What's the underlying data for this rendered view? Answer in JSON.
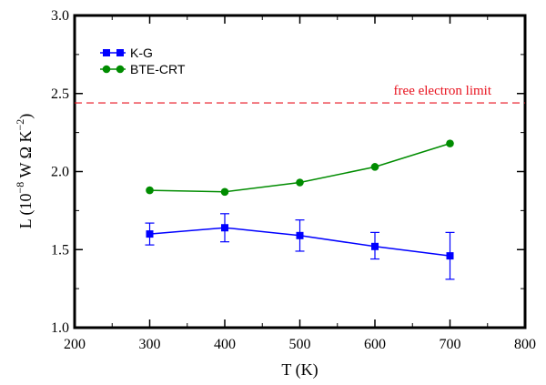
{
  "chart_data": {
    "type": "line",
    "title": "",
    "xlabel": "T (K)",
    "ylabel": "L (10^-8 W Ω K^-2)",
    "ylabel_parts": {
      "prefix": "L (10",
      "exp1": "−8",
      "middle": " W Ω K",
      "exp2": "−2",
      "suffix": ")"
    },
    "xlim": [
      200,
      800
    ],
    "ylim": [
      1.0,
      3.0
    ],
    "xticks": [
      200,
      300,
      400,
      500,
      600,
      700,
      800
    ],
    "xtick_labels": [
      "200",
      "300",
      "400",
      "500",
      "600",
      "700",
      "800"
    ],
    "yticks": [
      1.0,
      1.5,
      2.0,
      2.5,
      3.0
    ],
    "ytick_labels": [
      "1.0",
      "1.5",
      "2.0",
      "2.5",
      "3.0"
    ],
    "grid": false,
    "legend_position": "top-left",
    "series": [
      {
        "name": "K-G",
        "color": "#0000ff",
        "marker": "square",
        "x": [
          300,
          400,
          500,
          600,
          700
        ],
        "y": [
          1.6,
          1.64,
          1.59,
          1.52,
          1.46
        ],
        "err_low": [
          1.53,
          1.55,
          1.49,
          1.44,
          1.31
        ],
        "err_high": [
          1.67,
          1.73,
          1.69,
          1.61,
          1.61
        ]
      },
      {
        "name": "BTE-CRT",
        "color": "#008c00",
        "marker": "circle",
        "x": [
          300,
          400,
          500,
          600,
          700
        ],
        "y": [
          1.88,
          1.87,
          1.93,
          2.03,
          2.18
        ]
      }
    ],
    "reference_line": {
      "label": "free electron limit",
      "y": 2.44,
      "color": "#e8121e",
      "style": "dashed"
    }
  }
}
